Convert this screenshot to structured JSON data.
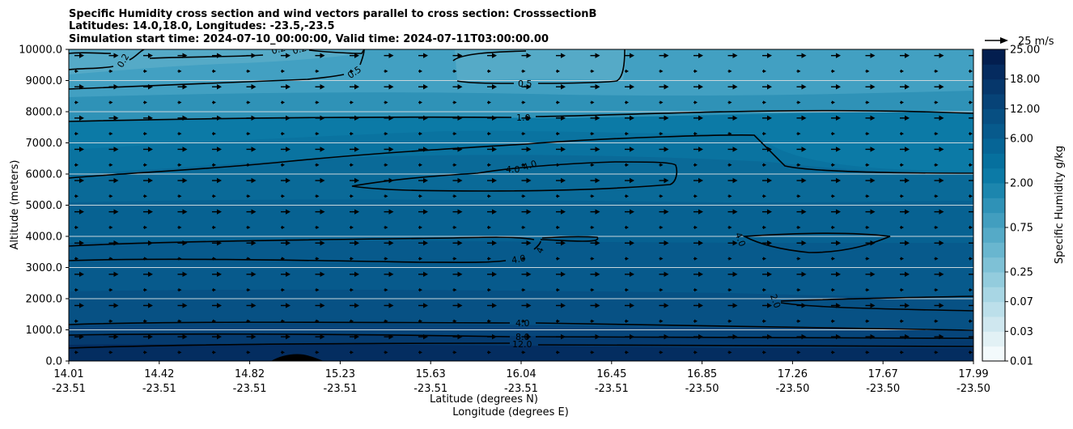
{
  "chart_data": {
    "type": "contour",
    "title_lines": [
      "Specific Humidity cross section and wind vectors parallel to cross section: CrosssectionB",
      "Latitudes: 14.0,18.0, Longitudes: -23.5,-23.5",
      "Simulation start time: 2024-07-10_00:00:00, Valid time: 2024-07-11T03:00:00.00"
    ],
    "xlabel": "Latitude (degrees N)",
    "xlabel2": "Longitude (degrees E)",
    "ylabel": "Altitude (meters)",
    "ylim": [
      0,
      10000
    ],
    "y_ticks": [
      0,
      1000,
      2000,
      3000,
      4000,
      5000,
      6000,
      7000,
      8000,
      9000,
      10000
    ],
    "y_tick_labels": [
      "0.0",
      "1000.0",
      "2000.0",
      "3000.0",
      "4000.0",
      "5000.0",
      "6000.0",
      "7000.0",
      "8000.0",
      "9000.0",
      "10000.0"
    ],
    "x_ticks": [
      {
        "lat": "14.01",
        "lon": "-23.51",
        "frac": 0.0
      },
      {
        "lat": "14.42",
        "lon": "-23.51",
        "frac": 0.1
      },
      {
        "lat": "14.82",
        "lon": "-23.51",
        "frac": 0.2
      },
      {
        "lat": "15.23",
        "lon": "-23.51",
        "frac": 0.3
      },
      {
        "lat": "15.63",
        "lon": "-23.51",
        "frac": 0.4
      },
      {
        "lat": "16.04",
        "lon": "-23.51",
        "frac": 0.5
      },
      {
        "lat": "16.45",
        "lon": "-23.51",
        "frac": 0.6
      },
      {
        "lat": "16.85",
        "lon": "-23.50",
        "frac": 0.7
      },
      {
        "lat": "17.26",
        "lon": "-23.50",
        "frac": 0.8
      },
      {
        "lat": "17.67",
        "lon": "-23.50",
        "frac": 0.9
      },
      {
        "lat": "17.99",
        "lon": "-23.50",
        "frac": 1.0
      }
    ],
    "colorbar": {
      "label": "Specific Humidity g/kg",
      "levels": [
        0.01,
        0.02,
        0.03,
        0.05,
        0.07,
        0.1,
        0.25,
        0.35,
        0.5,
        0.75,
        1.0,
        1.5,
        2.0,
        3.0,
        4.0,
        6.0,
        8.0,
        12.0,
        14.0,
        18.0,
        20.0,
        25.0
      ],
      "tick_labels": [
        "0.01",
        "0.03",
        "0.07",
        "0.25",
        "0.75",
        "2.00",
        "6.00",
        "12.00",
        "18.00",
        "25.00"
      ],
      "tick_level_index": [
        0,
        2,
        4,
        6,
        9,
        12,
        15,
        17,
        19,
        21
      ],
      "colors": [
        "#f3fafc",
        "#e2f1f5",
        "#cfe7ef",
        "#bcdfea",
        "#a8d6e4",
        "#93ccdd",
        "#7ec1d6",
        "#69b6cf",
        "#55aac7",
        "#429ebf",
        "#2f92b7",
        "#1c86ae",
        "#0c7aa6",
        "#06709e",
        "#066596",
        "#075a8c",
        "#074f82",
        "#074377",
        "#06376b",
        "#052b5f",
        "#031e4f"
      ]
    },
    "contour_labels": [
      {
        "text": "0.2"
      },
      {
        "text": "0.2"
      },
      {
        "text": "0.2"
      },
      {
        "text": "0.5"
      },
      {
        "text": "0.5"
      },
      {
        "text": "1.0"
      },
      {
        "text": "4.0"
      },
      {
        "text": "4.0"
      },
      {
        "text": "4"
      },
      {
        "text": "4.0"
      },
      {
        "text": "4.0"
      },
      {
        "text": "2.0"
      },
      {
        "text": "4.0"
      },
      {
        "text": "8.0"
      },
      {
        "text": "12.0"
      }
    ],
    "wind_reference": {
      "label": "25 m/s",
      "speed_ms": 25
    },
    "wind_direction": "parallel to cross section (northward)",
    "grid": "horizontal"
  }
}
